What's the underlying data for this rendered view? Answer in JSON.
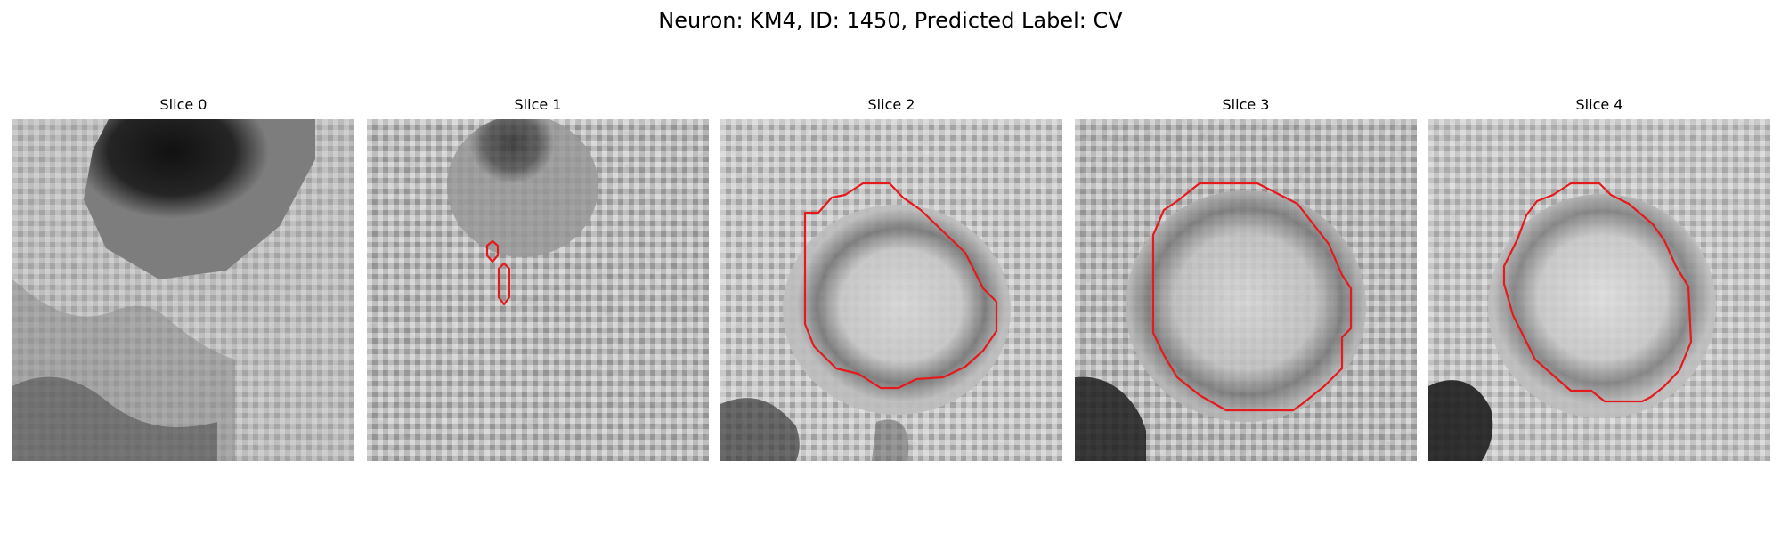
{
  "figure": {
    "title": "Neuron: KM4, ID: 1450, Predicted Label: CV",
    "contour_color": "#e41a1c"
  },
  "panels": [
    {
      "label": "Slice 0"
    },
    {
      "label": "Slice 1"
    },
    {
      "label": "Slice 2"
    },
    {
      "label": "Slice 3"
    },
    {
      "label": "Slice 4"
    }
  ]
}
